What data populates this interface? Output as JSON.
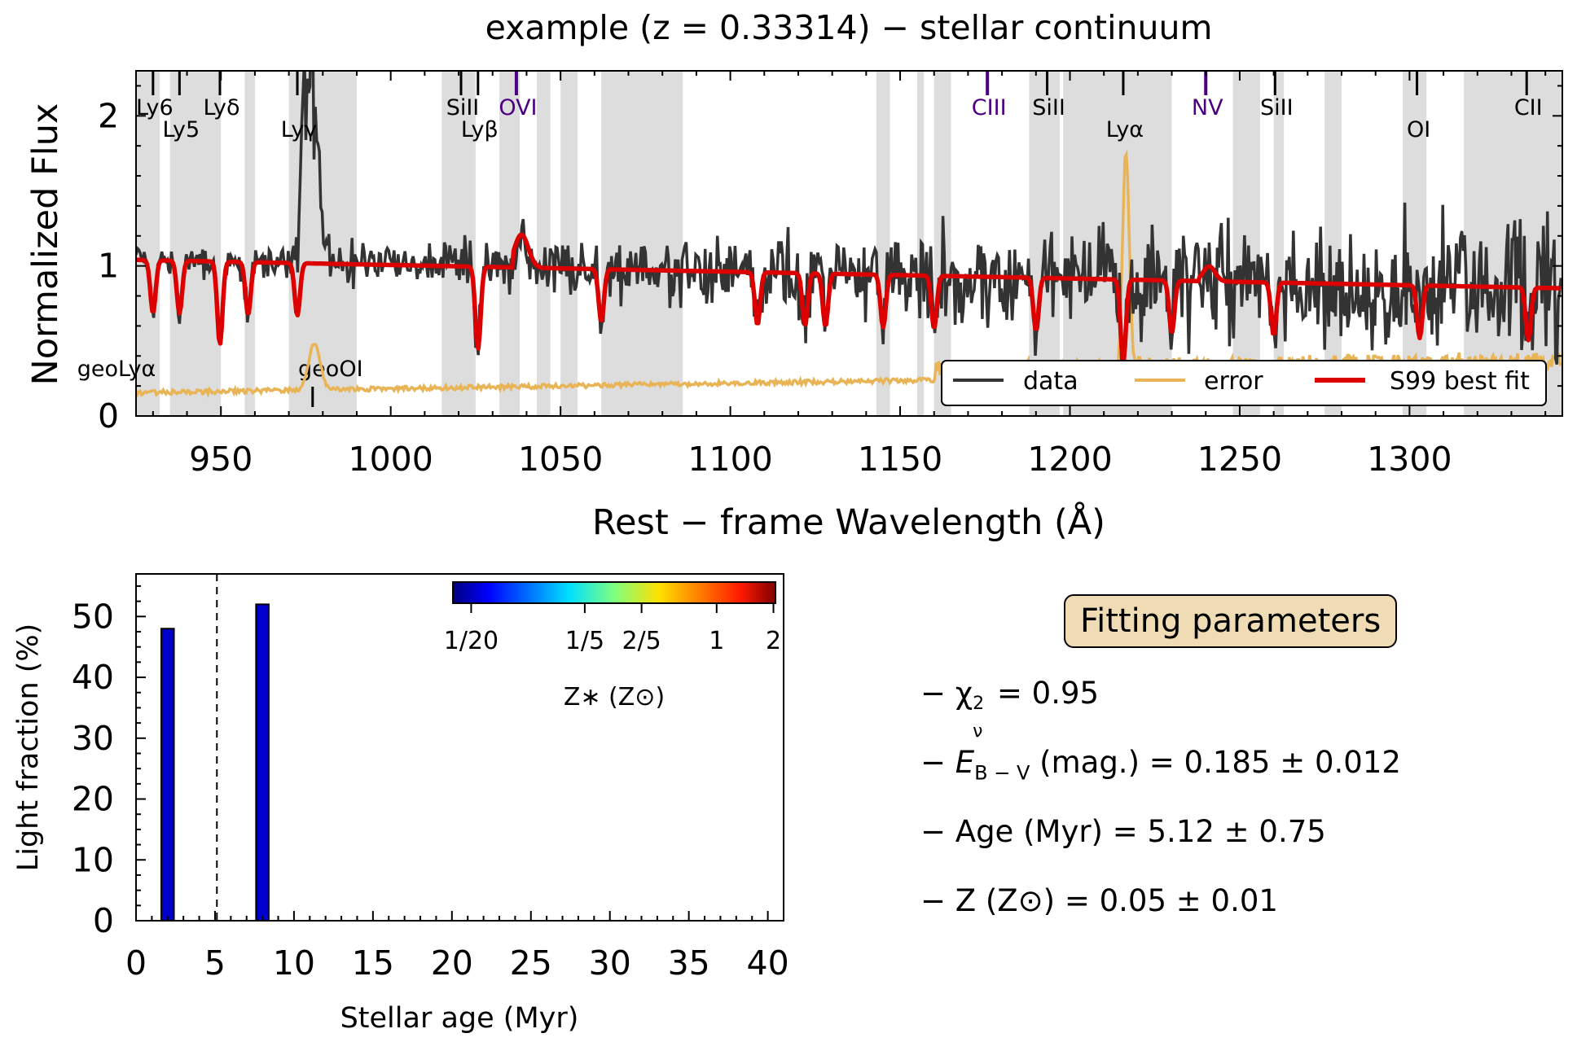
{
  "chart_data": [
    {
      "type": "line",
      "title": "example (z = 0.33314) − stellar continuum",
      "xlabel": "Rest − frame Wavelength (Å)",
      "ylabel": "Normalized Flux",
      "xlim": [
        925,
        1345
      ],
      "ylim": [
        0,
        2.3
      ],
      "xticks": [
        950,
        1000,
        1050,
        1100,
        1150,
        1200,
        1250,
        1300
      ],
      "yticks": [
        0,
        1,
        2
      ],
      "xtick_labels": [
        "950",
        "1000",
        "1050",
        "1100",
        "1150",
        "1200",
        "1250",
        "1300"
      ],
      "ytick_labels": [
        "0",
        "1",
        "2"
      ],
      "legend": {
        "placement": "lower-right",
        "entries": [
          "data",
          "error",
          "S99 best fit"
        ]
      },
      "colors": {
        "data": "#333333",
        "error": "#e8b455",
        "fit": "#dd0000",
        "masked": "#dddddd",
        "galactic_line": "#000000",
        "ism_purple": "#4b0082"
      },
      "masked_regions": [
        [
          925,
          932
        ],
        [
          935,
          950
        ],
        [
          957,
          960
        ],
        [
          970,
          990
        ],
        [
          1015,
          1025
        ],
        [
          1032,
          1038
        ],
        [
          1043,
          1047
        ],
        [
          1050,
          1055
        ],
        [
          1062,
          1086
        ],
        [
          1143,
          1147
        ],
        [
          1155,
          1157
        ],
        [
          1160,
          1165
        ],
        [
          1188,
          1197
        ],
        [
          1198,
          1230
        ],
        [
          1248,
          1256
        ],
        [
          1260,
          1263
        ],
        [
          1275,
          1280
        ],
        [
          1298,
          1305
        ],
        [
          1316,
          1345
        ]
      ],
      "line_markers": [
        {
          "label": "Ly6",
          "x": 930,
          "label_level": "upper",
          "color": "#000000"
        },
        {
          "label": "Ly5",
          "x": 937.8,
          "label_level": "lower",
          "color": "#000000"
        },
        {
          "label": "Lyδ",
          "x": 949.7,
          "label_level": "upper",
          "color": "#000000"
        },
        {
          "label": "Lyγ",
          "x": 972.5,
          "label_level": "lower",
          "color": "#000000"
        },
        {
          "label": "SiII",
          "x": 1020.7,
          "label_level": "upper",
          "color": "#000000"
        },
        {
          "label": "Lyβ",
          "x": 1025.7,
          "label_level": "lower",
          "color": "#000000"
        },
        {
          "label": "OVI",
          "x": 1037,
          "label_level": "upper",
          "color": "#4b0082"
        },
        {
          "label": "CIII",
          "x": 1175.7,
          "label_level": "upper",
          "color": "#4b0082"
        },
        {
          "label": "SiII",
          "x": 1193.3,
          "label_level": "upper",
          "color": "#000000"
        },
        {
          "label": "Lyα",
          "x": 1215.7,
          "label_level": "lower",
          "color": "#000000"
        },
        {
          "label": "NV",
          "x": 1240,
          "label_level": "upper",
          "color": "#4b0082"
        },
        {
          "label": "SiII",
          "x": 1260.4,
          "label_level": "upper",
          "color": "#000000"
        },
        {
          "label": "OI",
          "x": 1302.2,
          "label_level": "lower",
          "color": "#000000"
        },
        {
          "label": "CII",
          "x": 1334.5,
          "label_level": "upper",
          "color": "#000000"
        }
      ],
      "geo_markers": [
        {
          "label": "geoLyα",
          "x": 936
        },
        {
          "label": "geoOI",
          "x": 977
        }
      ],
      "series": [
        {
          "name": "data"
        },
        {
          "name": "error"
        },
        {
          "name": "S99 best fit"
        }
      ]
    },
    {
      "type": "bar",
      "xlabel": "Stellar age (Myr)",
      "ylabel": "Light fraction (%)",
      "xlim": [
        0,
        41
      ],
      "ylim": [
        0,
        57
      ],
      "xticks": [
        0,
        5,
        10,
        15,
        20,
        25,
        30,
        35,
        40
      ],
      "yticks": [
        0,
        10,
        20,
        30,
        40,
        50
      ],
      "xtick_labels": [
        "0",
        "5",
        "10",
        "15",
        "20",
        "25",
        "30",
        "35",
        "40"
      ],
      "ytick_labels": [
        "0",
        "10",
        "20",
        "30",
        "40",
        "50"
      ],
      "x": [
        2,
        8
      ],
      "values": [
        48,
        52
      ],
      "bar_color": "#0000cc",
      "vline": 5.12,
      "colorbar": {
        "label": "Z∗ (Z⊙)",
        "tick_labels": [
          "1/20",
          "1/5",
          "2/5",
          "1",
          "2"
        ],
        "ticks": [
          0.05,
          0.2,
          0.4,
          1,
          2
        ],
        "scale": "log"
      }
    }
  ],
  "params": {
    "title": "Fitting parameters",
    "chi": {
      "prefix": "− χ",
      "sup": "2",
      "sub": "ν",
      "value": " = 0.95"
    },
    "ebv": {
      "prefix": "− ",
      "sym": "E",
      "sub": "B − V",
      "value": " (mag.) = 0.185  ±  0.012"
    },
    "age": {
      "text": "− Age (Myr) = 5.12  ±  0.75"
    },
    "z": {
      "text": "− Z (Z⊙) = 0.05  ±  0.01"
    }
  }
}
